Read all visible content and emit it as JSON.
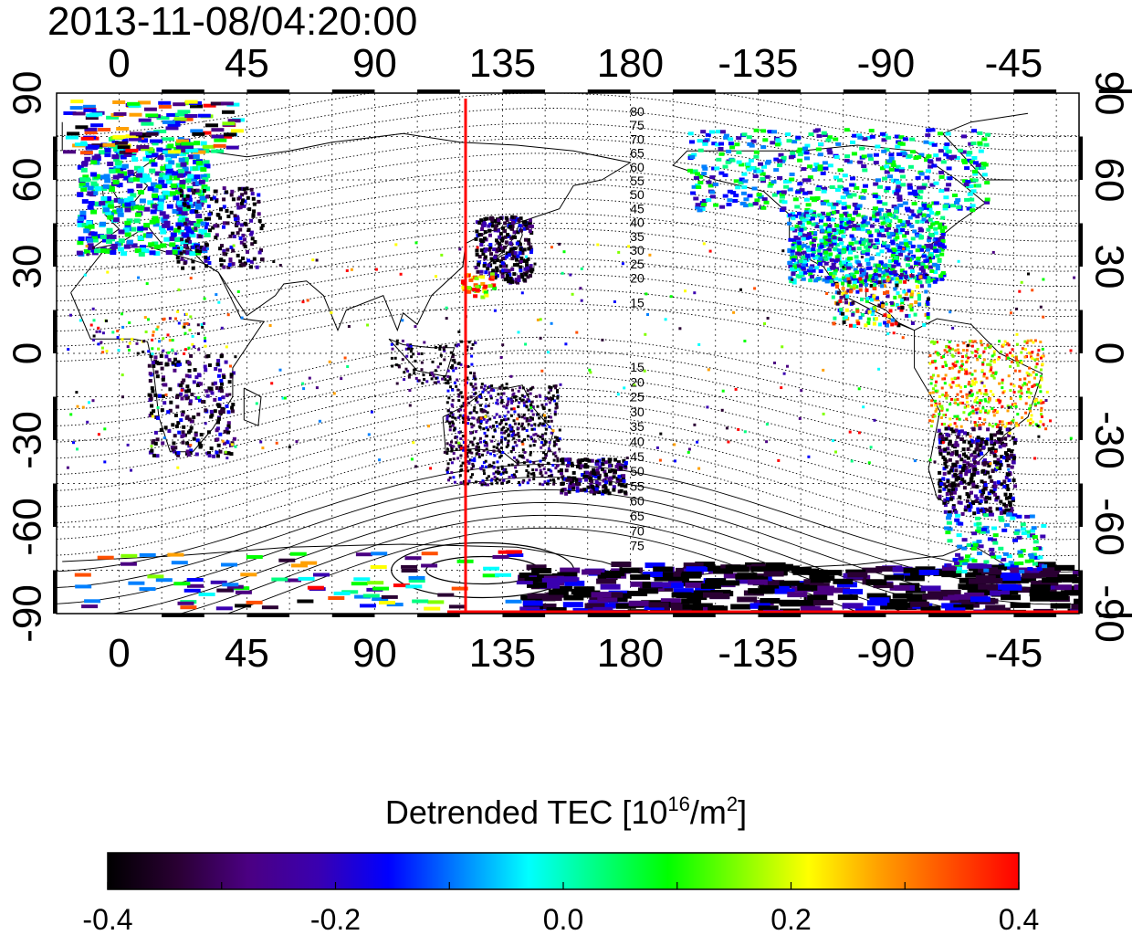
{
  "title": "2013-11-08/04:20:00",
  "map": {
    "x_tick_labels": [
      "0",
      "45",
      "90",
      "135",
      "180",
      "-135",
      "-90",
      "-45"
    ],
    "y_tick_labels_left": [
      "90",
      "60",
      "30",
      "0",
      "-30",
      "-60",
      "-90"
    ],
    "y_tick_labels_right": [
      "90",
      "60",
      "30",
      "0",
      "-30",
      "-60",
      "-90"
    ],
    "dip_contour_labels_north": [
      "80",
      "75",
      "70",
      "65",
      "60",
      "55",
      "50",
      "45",
      "40",
      "35",
      "30",
      "25",
      "20",
      "15"
    ],
    "dip_contour_labels_south": [
      "15",
      "20",
      "25",
      "30",
      "35",
      "40",
      "45",
      "50",
      "55",
      "60",
      "65",
      "70",
      "75"
    ],
    "terminator_color": "#ff0000",
    "terminator_lon": 122
  },
  "colorbar": {
    "title_main": "Detrended TEC  [10",
    "title_exp": "16",
    "title_unit": "/m",
    "title_exp2": "2",
    "title_end": "]",
    "tick_labels": [
      "-0.4",
      "-0.2",
      "0.0",
      "0.2",
      "0.4"
    ],
    "min": -0.4,
    "max": 0.4,
    "colors": [
      "#000000",
      "#2a0033",
      "#4b0082",
      "#3a00b0",
      "#0000ff",
      "#0080ff",
      "#00ffff",
      "#00ff80",
      "#00ff00",
      "#80ff00",
      "#ffff00",
      "#ffa000",
      "#ff5000",
      "#ff0000"
    ]
  }
}
